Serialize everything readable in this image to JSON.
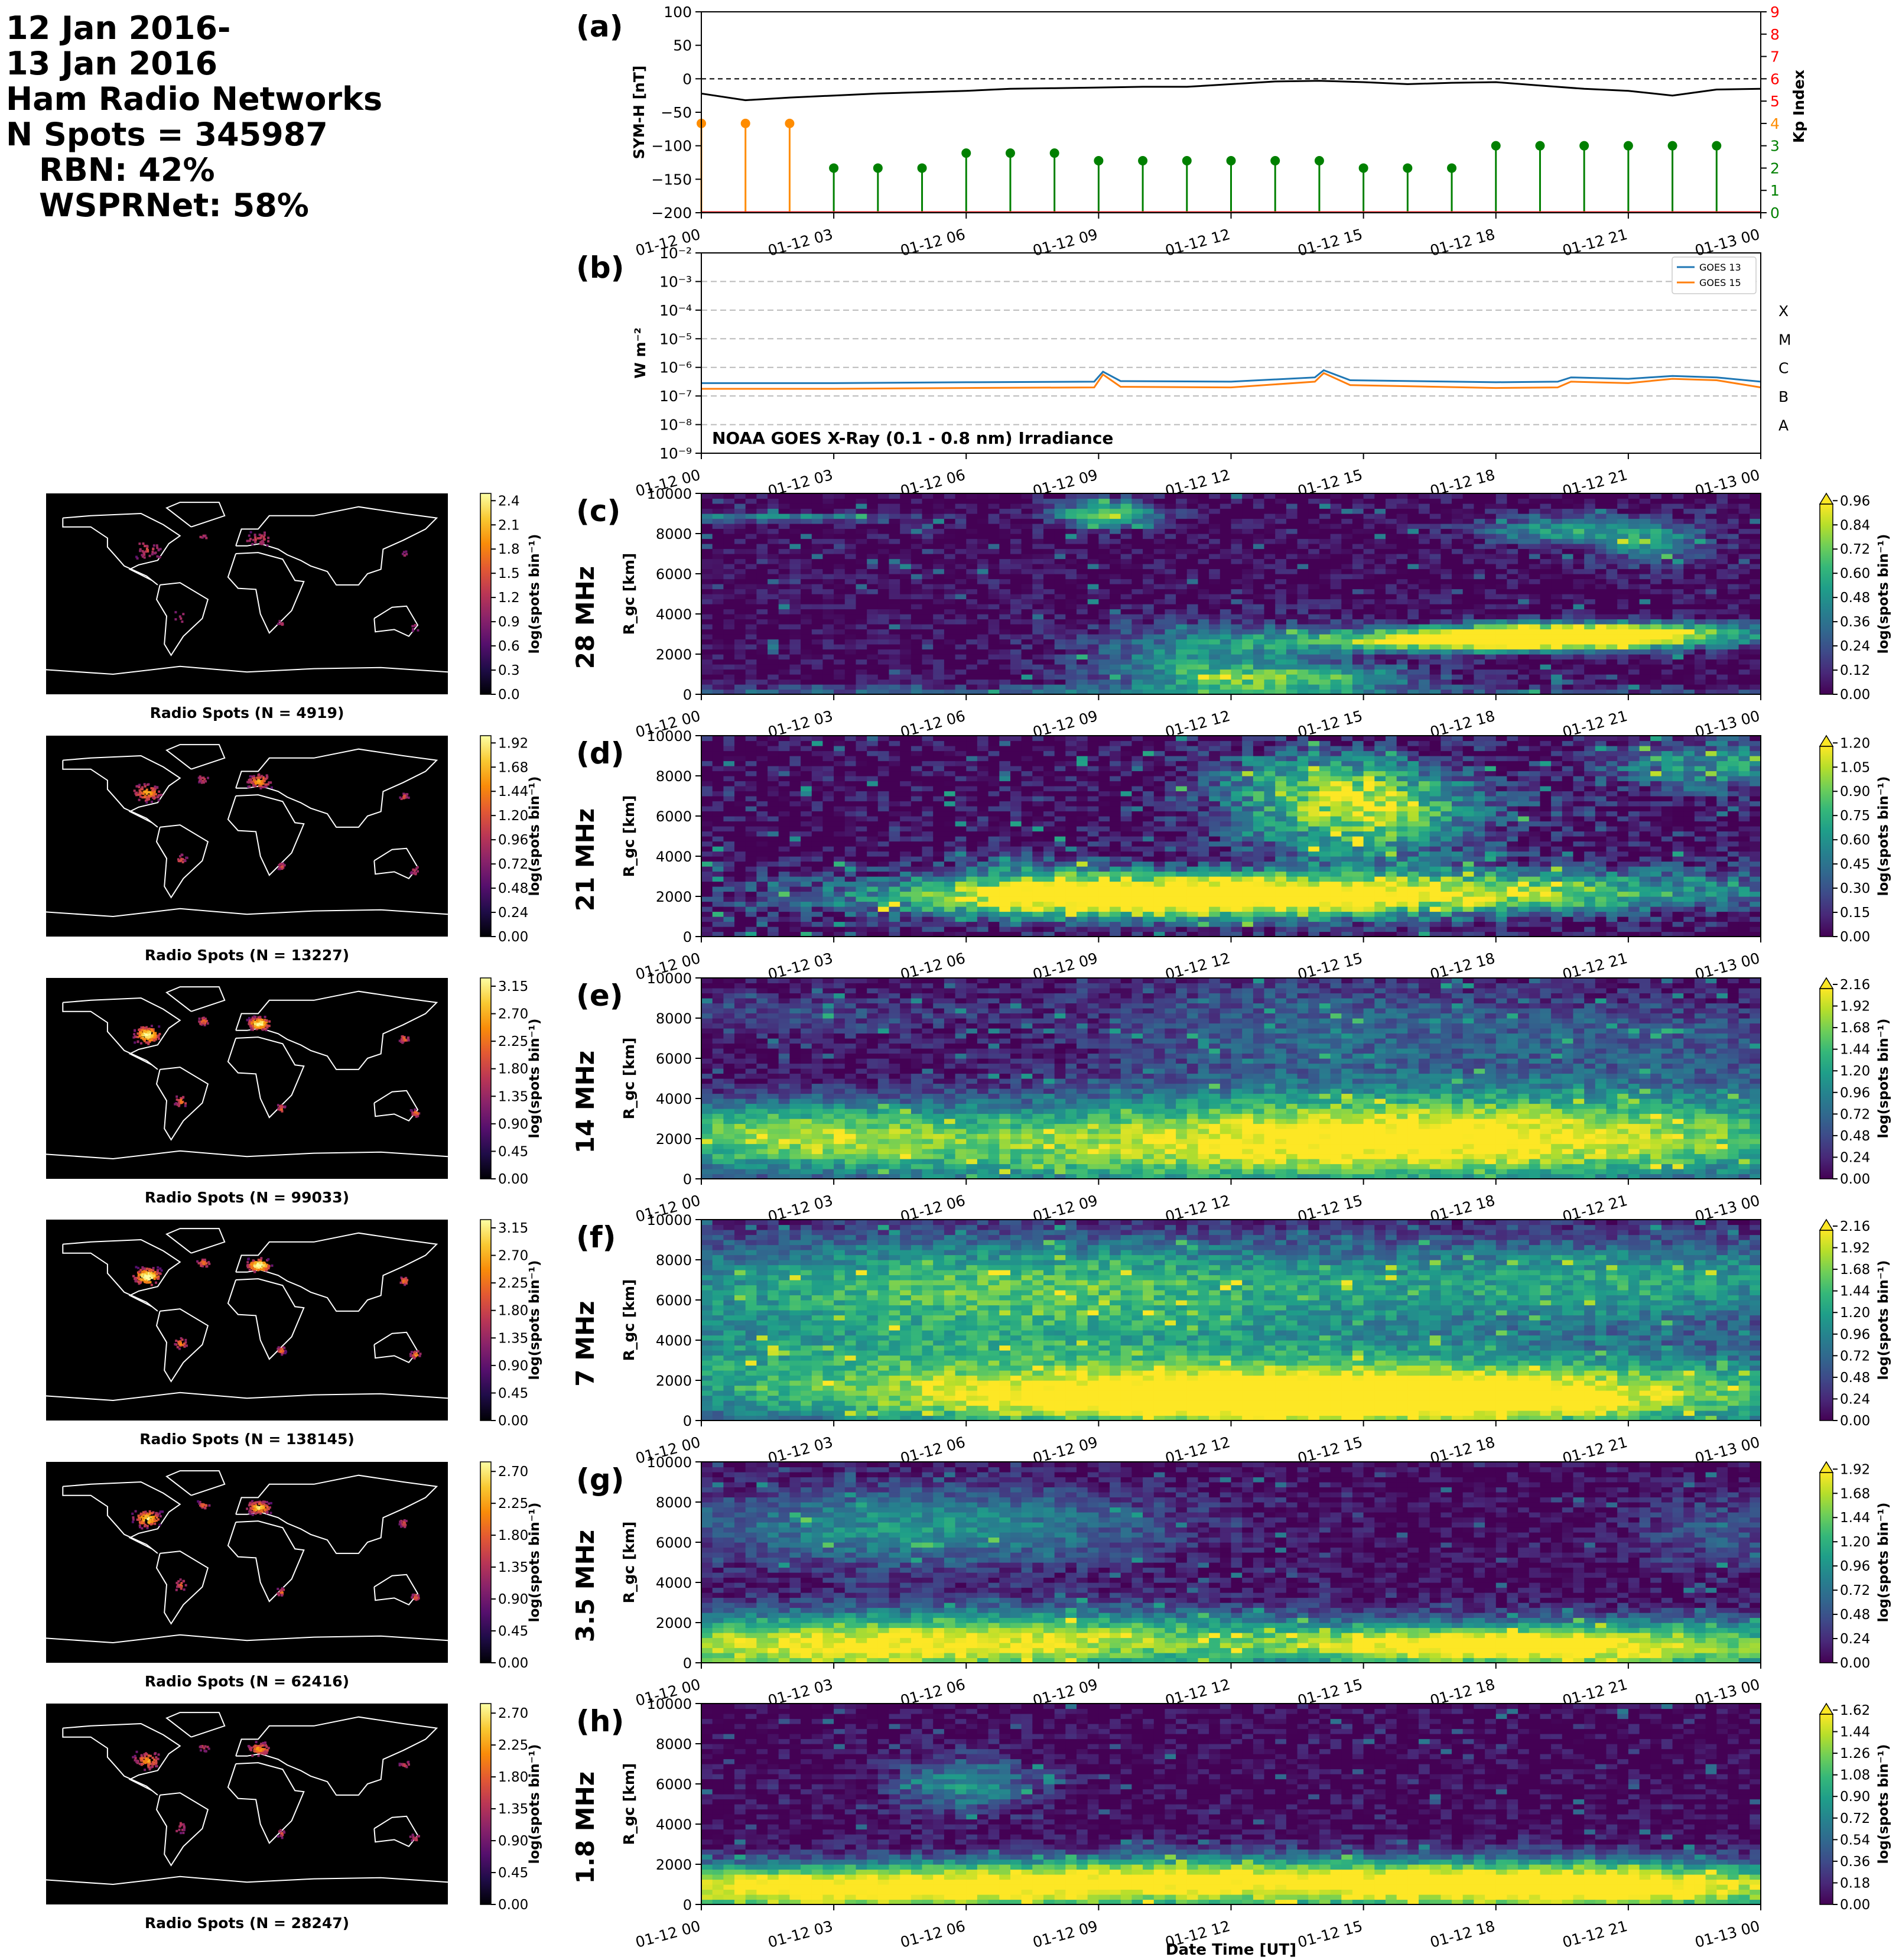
{
  "header": {
    "line1": "12 Jan 2016-",
    "line2": "13 Jan 2016",
    "line3": "Ham Radio Networks",
    "line4": "N Spots = 345987",
    "line5": "RBN: 42%",
    "line6": "WSPRNet: 58%"
  },
  "time_ticks": [
    "01-12 00",
    "01-12 03",
    "01-12 06",
    "01-12 09",
    "01-12 12",
    "01-12 15",
    "01-12 18",
    "01-12 21",
    "01-13 00"
  ],
  "xlabel": "Date Time [UT]",
  "colors": {
    "symh_line": "#000000",
    "kp_low": "#008000",
    "kp_mid": "#ff8c00",
    "goes13": "#1f77b4",
    "goes15": "#ff7f0e",
    "kp_axis": "#ff0000"
  },
  "chart_data": [
    {
      "type": "line",
      "panel": "(a)",
      "ylabel": "SYM-H [nT]",
      "ylim": [
        -200,
        100
      ],
      "yticks": [
        "100",
        "50",
        "0",
        "−50",
        "−100",
        "−150",
        "−200"
      ],
      "x_hours": [
        0,
        1,
        2,
        3,
        4,
        5,
        6,
        7,
        8,
        9,
        10,
        11,
        12,
        13,
        14,
        15,
        16,
        17,
        18,
        19,
        20,
        21,
        22,
        23,
        24
      ],
      "symh": [
        -22,
        -32,
        -28,
        -25,
        -22,
        -20,
        -18,
        -15,
        -14,
        -13,
        -12,
        -12,
        -8,
        -4,
        -3,
        -5,
        -8,
        -6,
        -5,
        -10,
        -15,
        -18,
        -25,
        -16,
        -15
      ],
      "kp_ylabel": "Kp Index",
      "kp_ylim": [
        0,
        9
      ],
      "kp_yticks": [
        "9",
        "8",
        "7",
        "6",
        "5",
        "4",
        "3",
        "2",
        "1",
        "0"
      ],
      "kp_x_hours": [
        0,
        1,
        2,
        3,
        4,
        5,
        6,
        7,
        8,
        9,
        10,
        11,
        12,
        13,
        14,
        15,
        16,
        17,
        18,
        19,
        20,
        21,
        22,
        23
      ],
      "kp": [
        4,
        4,
        4,
        2,
        2,
        2,
        2.67,
        2.67,
        2.67,
        2.33,
        2.33,
        2.33,
        2.33,
        2.33,
        2.33,
        2,
        2,
        2,
        3,
        3,
        3,
        3,
        3,
        3
      ]
    },
    {
      "type": "line",
      "panel": "(b)",
      "ylabel": "W m⁻²",
      "yscale": "log",
      "ylim_exp": [
        -9,
        -2
      ],
      "yticks": [
        "10⁻²",
        "10⁻³",
        "10⁻⁴",
        "10⁻⁵",
        "10⁻⁶",
        "10⁻⁷",
        "10⁻⁸",
        "10⁻⁹"
      ],
      "flare_classes": [
        "X",
        "M",
        "C",
        "B",
        "A"
      ],
      "annotation": "NOAA GOES X-Ray (0.1 - 0.8 nm) Irradiance",
      "series": [
        {
          "name": "GOES 13",
          "x_hours": [
            0,
            3,
            6,
            8.9,
            9.1,
            9.5,
            12,
            13.9,
            14.1,
            14.7,
            18,
            19.4,
            19.7,
            21,
            22,
            23,
            24
          ],
          "values_log10": [
            -6.55,
            -6.55,
            -6.52,
            -6.5,
            -6.15,
            -6.48,
            -6.5,
            -6.35,
            -6.1,
            -6.45,
            -6.52,
            -6.5,
            -6.35,
            -6.4,
            -6.3,
            -6.35,
            -6.5
          ]
        },
        {
          "name": "GOES 15",
          "x_hours": [
            0,
            3,
            6,
            8.9,
            9.1,
            9.5,
            12,
            13.9,
            14.1,
            14.7,
            18,
            19.4,
            19.7,
            21,
            22,
            23,
            24
          ],
          "values_log10": [
            -6.75,
            -6.75,
            -6.72,
            -6.7,
            -6.25,
            -6.68,
            -6.7,
            -6.5,
            -6.2,
            -6.62,
            -6.72,
            -6.7,
            -6.5,
            -6.55,
            -6.4,
            -6.45,
            -6.7
          ]
        }
      ]
    },
    {
      "type": "heatmap",
      "panel": "(c)",
      "band": "28 MHz",
      "ylabel": "R_gc [km]",
      "ylim": [
        0,
        10000
      ],
      "yticks": [
        "10000",
        "8000",
        "6000",
        "4000",
        "2000",
        "0"
      ],
      "cbar_label": "log(spots bin⁻¹)",
      "cbar_ticks": [
        "0.96",
        "0.84",
        "0.72",
        "0.60",
        "0.48",
        "0.36",
        "0.24",
        "0.12",
        "0.00"
      ],
      "cbar_max": 0.96,
      "blobs": [
        [
          1.5,
          8800,
          2.5,
          150,
          0.5
        ],
        [
          9.2,
          9000,
          0.8,
          500,
          0.8
        ],
        [
          11.5,
          1500,
          2,
          1500,
          0.5
        ],
        [
          14,
          800,
          2,
          400,
          0.5
        ],
        [
          18,
          2700,
          3,
          400,
          1.2
        ],
        [
          20.5,
          3100,
          2.5,
          400,
          0.8
        ],
        [
          19.5,
          8200,
          1.5,
          500,
          0.5
        ],
        [
          21.5,
          7500,
          1,
          800,
          0.4
        ],
        [
          0,
          200,
          24,
          150,
          0.3
        ]
      ],
      "noise": 0.15,
      "map_title": "Radio Spots (N = 4919)",
      "map_cbar_ticks": [
        "2.4",
        "2.1",
        "1.8",
        "1.5",
        "1.2",
        "0.9",
        "0.6",
        "0.3",
        "0.0"
      ]
    },
    {
      "type": "heatmap",
      "panel": "(d)",
      "band": "21 MHz",
      "ylabel": "R_gc [km]",
      "ylim": [
        0,
        10000
      ],
      "yticks": [
        "10000",
        "8000",
        "6000",
        "4000",
        "2000",
        "0"
      ],
      "cbar_label": "log(spots bin⁻¹)",
      "cbar_ticks": [
        "1.20",
        "1.05",
        "0.90",
        "0.75",
        "0.60",
        "0.45",
        "0.30",
        "0.15",
        "0.00"
      ],
      "cbar_max": 1.2,
      "blobs": [
        [
          11,
          2000,
          5,
          800,
          1.6
        ],
        [
          15,
          6000,
          2,
          1500,
          1.0
        ],
        [
          14,
          8000,
          2,
          1000,
          0.5
        ],
        [
          20,
          2400,
          4,
          800,
          0.6
        ],
        [
          23,
          8500,
          2,
          1000,
          0.6
        ],
        [
          7.5,
          3000,
          1.5,
          1000,
          0.3
        ]
      ],
      "noise": 0.25,
      "map_title": "Radio Spots (N = 13227)",
      "map_cbar_ticks": [
        "1.92",
        "1.68",
        "1.44",
        "1.20",
        "0.96",
        "0.72",
        "0.48",
        "0.24",
        "0.00"
      ]
    },
    {
      "type": "heatmap",
      "panel": "(e)",
      "band": "14 MHz",
      "ylabel": "R_gc [km]",
      "ylim": [
        0,
        10000
      ],
      "yticks": [
        "10000",
        "8000",
        "6000",
        "4000",
        "2000",
        "0"
      ],
      "cbar_label": "log(spots bin⁻¹)",
      "cbar_ticks": [
        "2.16",
        "1.92",
        "1.68",
        "1.44",
        "1.20",
        "0.96",
        "0.72",
        "0.48",
        "0.24",
        "0.00"
      ],
      "cbar_max": 2.16,
      "blobs": [
        [
          14,
          1500,
          9,
          1500,
          1.8
        ],
        [
          1.5,
          2300,
          3,
          1200,
          1.2
        ],
        [
          18,
          3000,
          7,
          1500,
          1.0
        ],
        [
          14,
          7500,
          4,
          2000,
          0.7
        ],
        [
          2,
          8200,
          3,
          800,
          0.5
        ],
        [
          22,
          7000,
          3,
          1500,
          0.5
        ]
      ],
      "noise": 0.3,
      "map_title": "Radio Spots (N = 99033)",
      "map_cbar_ticks": [
        "3.15",
        "2.70",
        "2.25",
        "1.80",
        "1.35",
        "0.90",
        "0.45",
        "0.00"
      ]
    },
    {
      "type": "heatmap",
      "panel": "(f)",
      "band": "7 MHz",
      "ylabel": "R_gc [km]",
      "ylim": [
        0,
        10000
      ],
      "yticks": [
        "10000",
        "8000",
        "6000",
        "4000",
        "2000",
        "0"
      ],
      "cbar_label": "log(spots bin⁻¹)",
      "cbar_ticks": [
        "2.16",
        "1.92",
        "1.68",
        "1.44",
        "1.20",
        "0.96",
        "0.72",
        "0.48",
        "0.24",
        "0.00"
      ],
      "cbar_max": 2.16,
      "blobs": [
        [
          13,
          1000,
          6,
          900,
          1.8
        ],
        [
          5,
          2200,
          9,
          1800,
          1.3
        ],
        [
          20,
          1500,
          6,
          1500,
          1.2
        ],
        [
          5,
          6800,
          7,
          1800,
          1.0
        ],
        [
          22,
          7000,
          4,
          1500,
          0.9
        ],
        [
          12,
          6500,
          8,
          2000,
          0.7
        ]
      ],
      "noise": 0.3,
      "map_title": "Radio Spots (N = 138145)",
      "map_cbar_ticks": [
        "3.15",
        "2.70",
        "2.25",
        "1.80",
        "1.35",
        "0.90",
        "0.45",
        "0.00"
      ]
    },
    {
      "type": "heatmap",
      "panel": "(g)",
      "band": "3.5 MHz",
      "ylabel": "R_gc [km]",
      "ylim": [
        0,
        10000
      ],
      "yticks": [
        "10000",
        "8000",
        "6000",
        "4000",
        "2000",
        "0"
      ],
      "cbar_label": "log(spots bin⁻¹)",
      "cbar_ticks": [
        "1.92",
        "1.68",
        "1.44",
        "1.20",
        "0.96",
        "0.72",
        "0.48",
        "0.24",
        "0.00"
      ],
      "cbar_max": 1.92,
      "blobs": [
        [
          3,
          800,
          6,
          1200,
          1.8
        ],
        [
          21,
          800,
          5,
          1000,
          1.6
        ],
        [
          5,
          6800,
          4,
          1500,
          1.0
        ],
        [
          23,
          6500,
          1.5,
          1500,
          0.5
        ],
        [
          9,
          1500,
          4,
          1000,
          0.6
        ],
        [
          17,
          900,
          3,
          600,
          0.9
        ]
      ],
      "noise": 0.25,
      "map_title": "Radio Spots (N = 62416)",
      "map_cbar_ticks": [
        "2.70",
        "2.25",
        "1.80",
        "1.35",
        "0.90",
        "0.45",
        "0.00"
      ]
    },
    {
      "type": "heatmap",
      "panel": "(h)",
      "band": "1.8 MHz",
      "ylabel": "R_gc [km]",
      "ylim": [
        0,
        10000
      ],
      "yticks": [
        "10000",
        "8000",
        "6000",
        "4000",
        "2000",
        "0"
      ],
      "cbar_label": "log(spots bin⁻¹)",
      "cbar_ticks": [
        "1.62",
        "1.44",
        "1.26",
        "1.08",
        "0.90",
        "0.72",
        "0.54",
        "0.36",
        "0.18",
        "0.00"
      ],
      "cbar_max": 1.62,
      "blobs": [
        [
          3,
          800,
          6,
          900,
          1.8
        ],
        [
          21,
          800,
          5,
          900,
          1.4
        ],
        [
          6,
          6000,
          1.2,
          1000,
          0.8
        ],
        [
          16,
          1200,
          5,
          900,
          0.9
        ],
        [
          10,
          1500,
          3,
          800,
          0.5
        ]
      ],
      "noise": 0.22,
      "map_title": "Radio Spots (N = 28247)",
      "map_cbar_ticks": [
        "2.70",
        "2.25",
        "1.80",
        "1.35",
        "0.90",
        "0.45",
        "0.00"
      ]
    }
  ]
}
